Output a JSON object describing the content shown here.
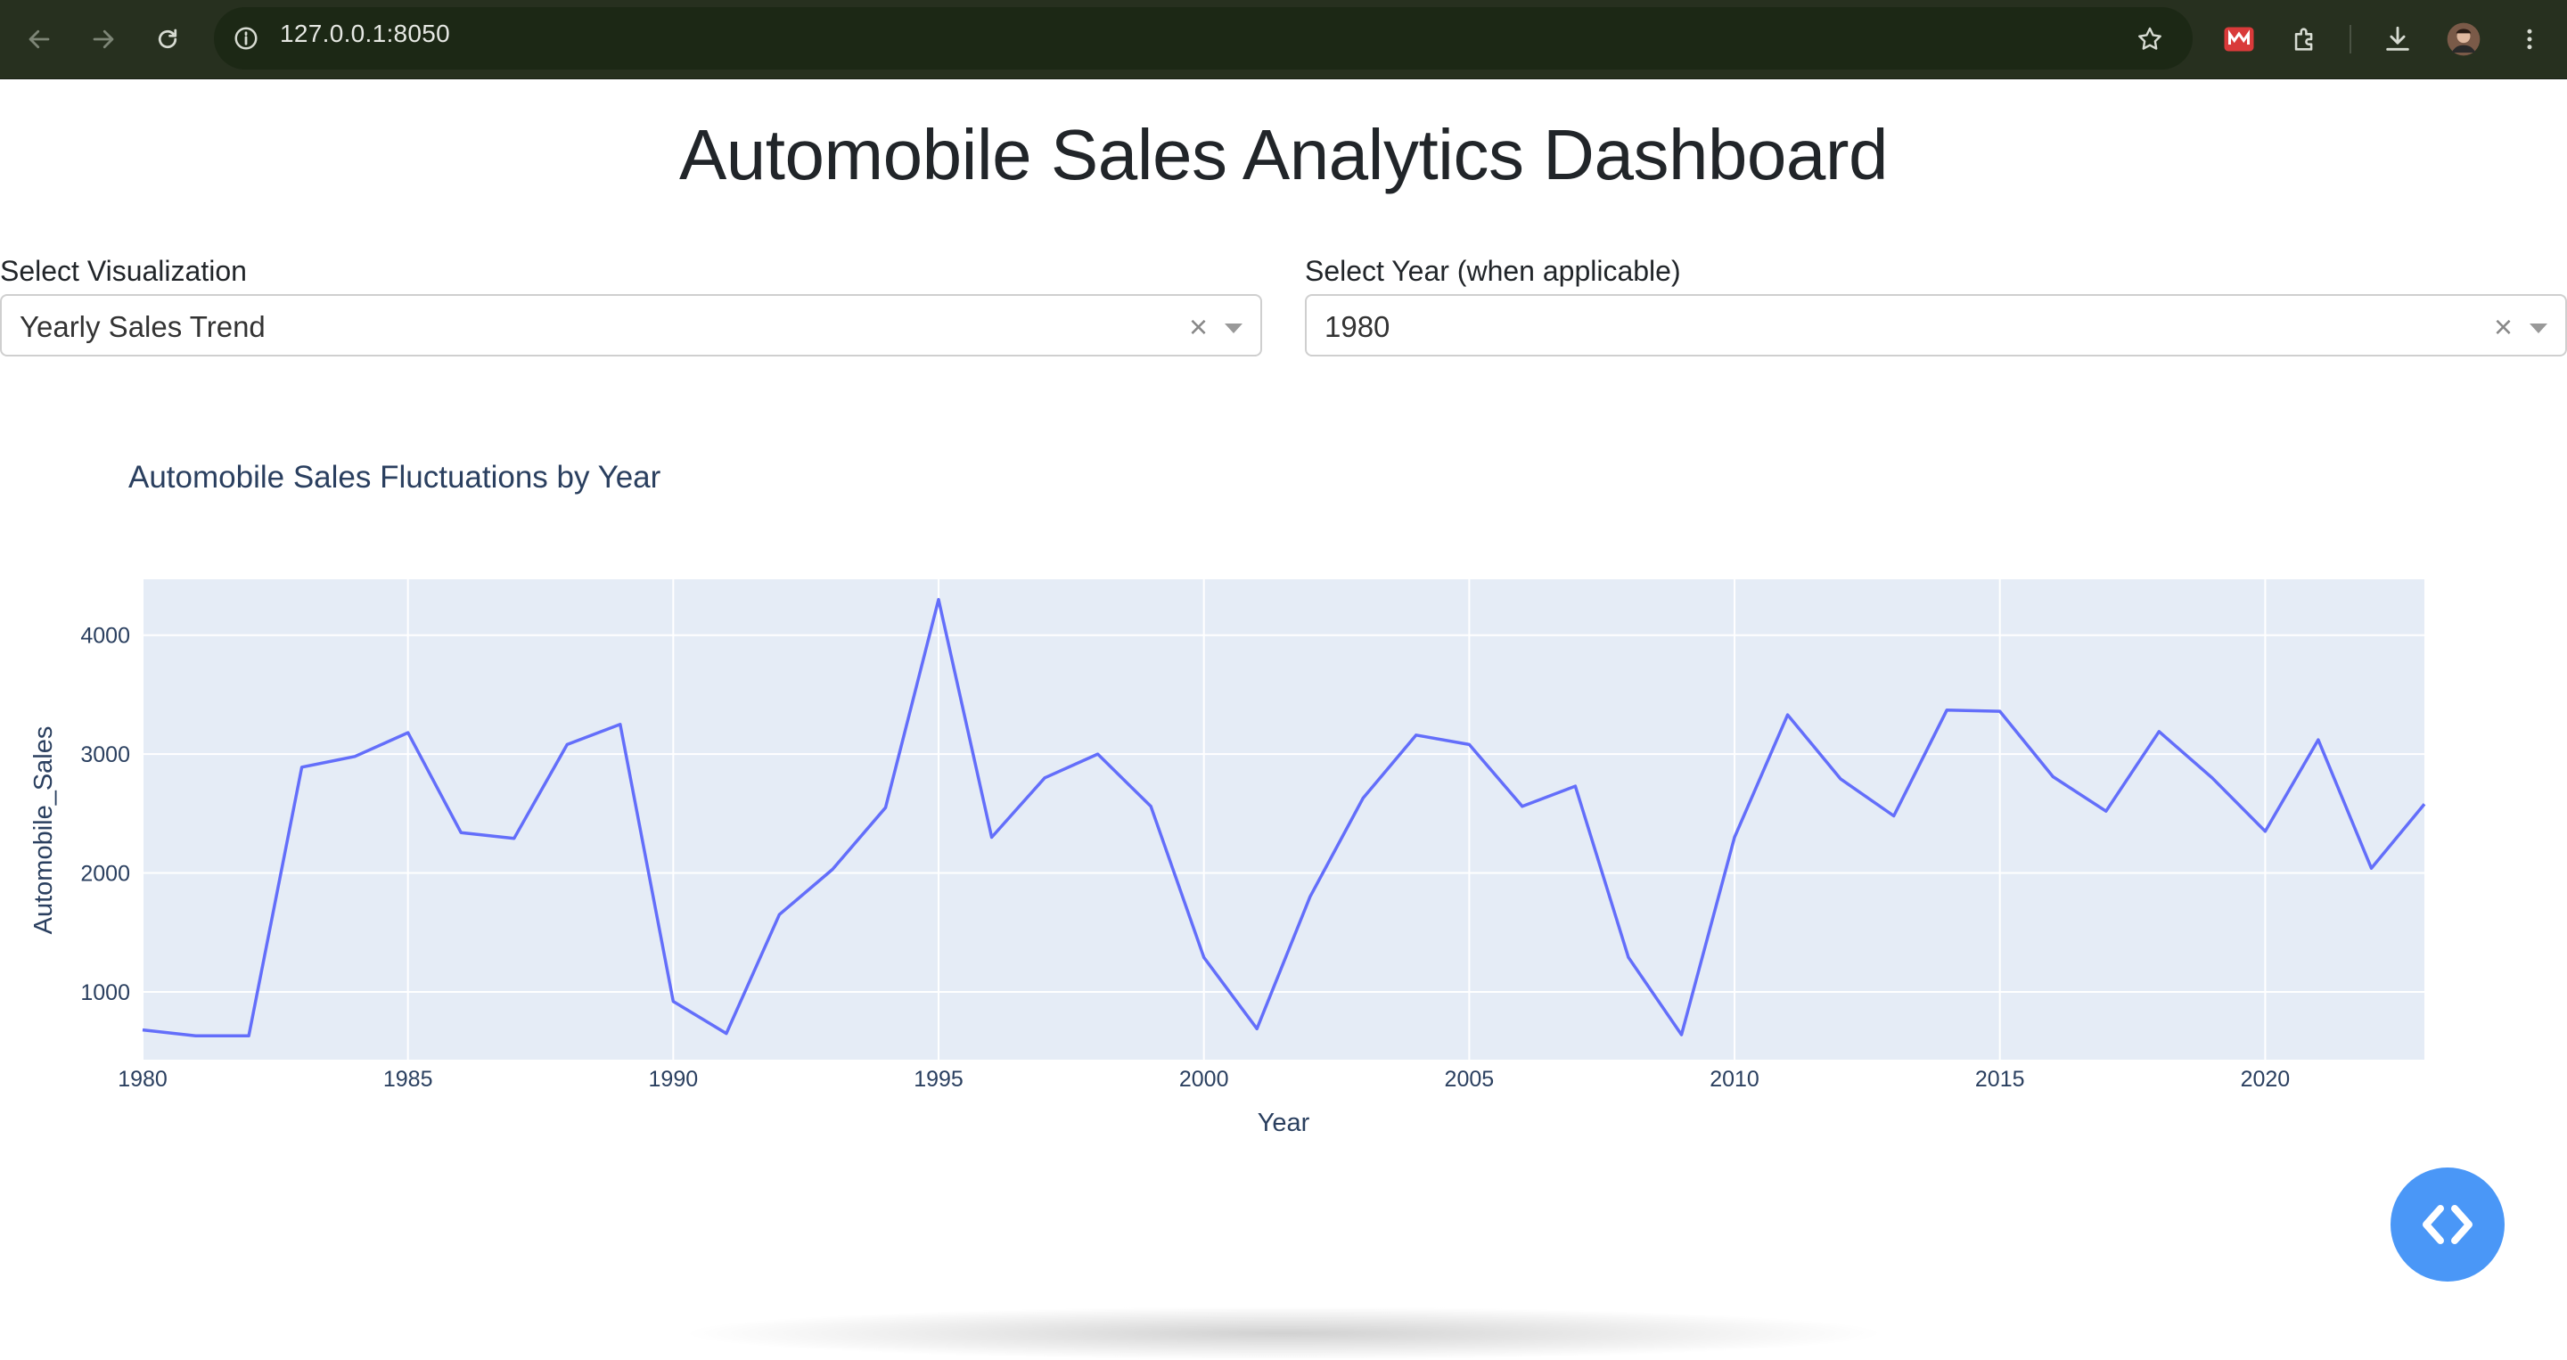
{
  "browser": {
    "url": "127.0.0.1:8050"
  },
  "page": {
    "title": "Automobile Sales Analytics Dashboard"
  },
  "controls": {
    "visualization": {
      "label": "Select Visualization",
      "value": "Yearly Sales Trend"
    },
    "year": {
      "label": "Select Year (when applicable)",
      "value": "1980"
    }
  },
  "chart_data": {
    "type": "line",
    "title": "Automobile Sales Fluctuations by Year",
    "xlabel": "Year",
    "ylabel": "Automobile_Sales",
    "xlim": [
      1980,
      2023
    ],
    "ylim": [
      430,
      4470
    ],
    "x_ticks": [
      1980,
      1985,
      1990,
      1995,
      2000,
      2005,
      2010,
      2015,
      2020
    ],
    "y_ticks": [
      1000,
      2000,
      3000,
      4000
    ],
    "grid": true,
    "line_color": "#636efa",
    "plot_bg": "#e5ecf6",
    "x": [
      1980,
      1981,
      1982,
      1983,
      1984,
      1985,
      1986,
      1987,
      1988,
      1989,
      1990,
      1991,
      1992,
      1993,
      1994,
      1995,
      1996,
      1997,
      1998,
      1999,
      2000,
      2001,
      2002,
      2003,
      2004,
      2005,
      2006,
      2007,
      2008,
      2009,
      2010,
      2011,
      2012,
      2013,
      2014,
      2015,
      2016,
      2017,
      2018,
      2019,
      2020,
      2021,
      2022,
      2023
    ],
    "y": [
      680,
      630,
      630,
      2890,
      2980,
      3180,
      2340,
      2290,
      3080,
      3250,
      920,
      650,
      1650,
      2030,
      2550,
      4300,
      2300,
      2800,
      3000,
      2560,
      1290,
      690,
      1800,
      2630,
      3160,
      3080,
      2560,
      2730,
      1290,
      640,
      2300,
      3330,
      2790,
      2480,
      3370,
      3360,
      2810,
      2520,
      3190,
      2800,
      2350,
      3120,
      2040,
      2580
    ]
  }
}
